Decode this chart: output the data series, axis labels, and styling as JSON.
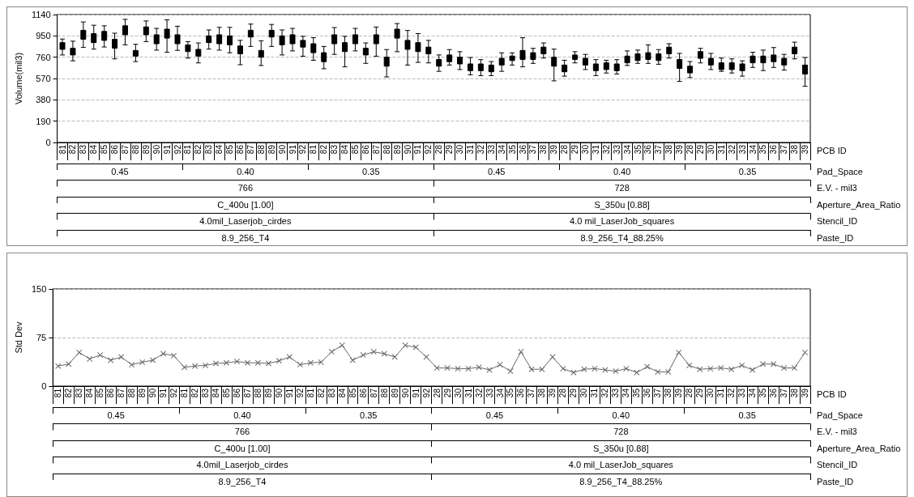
{
  "chart_data": [
    {
      "type": "box",
      "ylabel": "Volume(mil3)",
      "xlabel": "PCB ID",
      "color": "#000000",
      "ylim": [
        0,
        1140
      ],
      "yticks": [
        0,
        190,
        380,
        570,
        760,
        950,
        1140
      ],
      "grid": "y",
      "categories": [
        "81",
        "82",
        "83",
        "84",
        "85",
        "86",
        "87",
        "88",
        "89",
        "90",
        "91",
        "92",
        "81",
        "82",
        "83",
        "84",
        "85",
        "86",
        "87",
        "88",
        "89",
        "90",
        "91",
        "92",
        "81",
        "82",
        "83",
        "84",
        "85",
        "86",
        "87",
        "88",
        "89",
        "90",
        "91",
        "92",
        "28",
        "29",
        "30",
        "31",
        "32",
        "33",
        "34",
        "35",
        "36",
        "37",
        "38",
        "39",
        "28",
        "29",
        "30",
        "31",
        "32",
        "33",
        "34",
        "35",
        "36",
        "37",
        "38",
        "39",
        "28",
        "29",
        "30",
        "31",
        "32",
        "33",
        "34",
        "35",
        "36",
        "37",
        "38",
        "39"
      ],
      "annotations": [
        "0.45",
        "0.40",
        "0.35",
        "0.45",
        "0.40",
        "0.35",
        "Pad_Space",
        "766",
        "728",
        "E.V. - mil3",
        "C_400u [1.00]",
        "S_350u [0.88]",
        "Aperture_Area_Ratio",
        "4.0mil_Laserjob_cirdes",
        "4.0 mil_LaserJob_squares",
        "Stencil_ID",
        "8.9_256_T4",
        "8.9_256_T4_88.25%",
        "Paste_ID"
      ],
      "boxes": [
        {
          "low": 780,
          "q1": 830,
          "median": 860,
          "q3": 890,
          "high": 922
        },
        {
          "low": 728,
          "q1": 780,
          "median": 810,
          "q3": 840,
          "high": 903
        },
        {
          "low": 847,
          "q1": 920,
          "median": 960,
          "q3": 1000,
          "high": 1074
        },
        {
          "low": 832,
          "q1": 890,
          "median": 930,
          "q3": 970,
          "high": 1045
        },
        {
          "low": 851,
          "q1": 910,
          "median": 950,
          "q3": 990,
          "high": 1040
        },
        {
          "low": 745,
          "q1": 840,
          "median": 880,
          "q3": 920,
          "high": 974
        },
        {
          "low": 870,
          "q1": 960,
          "median": 1000,
          "q3": 1040,
          "high": 1097
        },
        {
          "low": 721,
          "q1": 770,
          "median": 790,
          "q3": 820,
          "high": 875
        },
        {
          "low": 899,
          "q1": 960,
          "median": 1000,
          "q3": 1030,
          "high": 1083
        },
        {
          "low": 823,
          "q1": 880,
          "median": 920,
          "q3": 960,
          "high": 1017
        },
        {
          "low": 804,
          "q1": 930,
          "median": 970,
          "q3": 1010,
          "high": 1093
        },
        {
          "low": 821,
          "q1": 880,
          "median": 920,
          "q3": 960,
          "high": 1036
        },
        {
          "low": 752,
          "q1": 810,
          "median": 840,
          "q3": 870,
          "high": 899
        },
        {
          "low": 709,
          "q1": 770,
          "median": 800,
          "q3": 830,
          "high": 887
        },
        {
          "low": 832,
          "q1": 890,
          "median": 920,
          "q3": 950,
          "high": 1003
        },
        {
          "low": 823,
          "q1": 880,
          "median": 920,
          "q3": 960,
          "high": 1026
        },
        {
          "low": 799,
          "q1": 870,
          "median": 910,
          "q3": 950,
          "high": 1026
        },
        {
          "low": 693,
          "q1": 790,
          "median": 830,
          "q3": 860,
          "high": 910
        },
        {
          "low": 856,
          "q1": 940,
          "median": 970,
          "q3": 1000,
          "high": 1055
        },
        {
          "low": 686,
          "q1": 760,
          "median": 790,
          "q3": 820,
          "high": 906
        },
        {
          "low": 856,
          "q1": 940,
          "median": 970,
          "q3": 1000,
          "high": 1052
        },
        {
          "low": 780,
          "q1": 870,
          "median": 910,
          "q3": 950,
          "high": 1003
        },
        {
          "low": 816,
          "q1": 880,
          "median": 920,
          "q3": 960,
          "high": 1017
        },
        {
          "low": 769,
          "q1": 850,
          "median": 880,
          "q3": 910,
          "high": 946
        },
        {
          "low": 733,
          "q1": 800,
          "median": 840,
          "q3": 880,
          "high": 934
        },
        {
          "low": 657,
          "q1": 720,
          "median": 760,
          "q3": 800,
          "high": 856
        },
        {
          "low": 785,
          "q1": 880,
          "median": 920,
          "q3": 960,
          "high": 1024
        },
        {
          "low": 674,
          "q1": 810,
          "median": 850,
          "q3": 890,
          "high": 946
        },
        {
          "low": 816,
          "q1": 880,
          "median": 920,
          "q3": 960,
          "high": 1017
        },
        {
          "low": 705,
          "q1": 780,
          "median": 810,
          "q3": 840,
          "high": 887
        },
        {
          "low": 769,
          "q1": 880,
          "median": 920,
          "q3": 960,
          "high": 1029
        },
        {
          "low": 584,
          "q1": 680,
          "median": 720,
          "q3": 760,
          "high": 828
        },
        {
          "low": 809,
          "q1": 930,
          "median": 970,
          "q3": 1010,
          "high": 1060
        },
        {
          "low": 690,
          "q1": 830,
          "median": 870,
          "q3": 910,
          "high": 998
        },
        {
          "low": 714,
          "q1": 810,
          "median": 850,
          "q3": 890,
          "high": 970
        },
        {
          "low": 709,
          "q1": 790,
          "median": 820,
          "q3": 850,
          "high": 910
        },
        {
          "low": 634,
          "q1": 680,
          "median": 710,
          "q3": 740,
          "high": 780
        },
        {
          "low": 690,
          "q1": 720,
          "median": 750,
          "q3": 780,
          "high": 828
        },
        {
          "low": 650,
          "q1": 700,
          "median": 730,
          "q3": 760,
          "high": 809
        },
        {
          "low": 603,
          "q1": 640,
          "median": 670,
          "q3": 700,
          "high": 757
        },
        {
          "low": 596,
          "q1": 640,
          "median": 670,
          "q3": 700,
          "high": 738
        },
        {
          "low": 596,
          "q1": 630,
          "median": 660,
          "q3": 690,
          "high": 721
        },
        {
          "low": 634,
          "q1": 690,
          "median": 720,
          "q3": 750,
          "high": 799
        },
        {
          "low": 690,
          "q1": 730,
          "median": 750,
          "q3": 770,
          "high": 799
        },
        {
          "low": 674,
          "q1": 740,
          "median": 780,
          "q3": 820,
          "high": 934
        },
        {
          "low": 705,
          "q1": 740,
          "median": 770,
          "q3": 800,
          "high": 839
        },
        {
          "low": 752,
          "q1": 790,
          "median": 820,
          "q3": 850,
          "high": 887
        },
        {
          "low": 549,
          "q1": 680,
          "median": 720,
          "q3": 760,
          "high": 832
        },
        {
          "low": 591,
          "q1": 630,
          "median": 660,
          "q3": 690,
          "high": 733
        },
        {
          "low": 709,
          "q1": 740,
          "median": 760,
          "q3": 780,
          "high": 809
        },
        {
          "low": 650,
          "q1": 690,
          "median": 720,
          "q3": 750,
          "high": 785
        },
        {
          "low": 596,
          "q1": 640,
          "median": 670,
          "q3": 700,
          "high": 738
        },
        {
          "low": 619,
          "q1": 650,
          "median": 680,
          "q3": 710,
          "high": 733
        },
        {
          "low": 610,
          "q1": 640,
          "median": 670,
          "q3": 700,
          "high": 738
        },
        {
          "low": 686,
          "q1": 710,
          "median": 740,
          "q3": 770,
          "high": 816
        },
        {
          "low": 705,
          "q1": 730,
          "median": 760,
          "q3": 790,
          "high": 823
        },
        {
          "low": 705,
          "q1": 740,
          "median": 770,
          "q3": 800,
          "high": 870
        },
        {
          "low": 697,
          "q1": 730,
          "median": 760,
          "q3": 790,
          "high": 828
        },
        {
          "low": 752,
          "q1": 790,
          "median": 820,
          "q3": 850,
          "high": 880
        },
        {
          "low": 544,
          "q1": 660,
          "median": 700,
          "q3": 740,
          "high": 794
        },
        {
          "low": 579,
          "q1": 620,
          "median": 650,
          "q3": 680,
          "high": 721
        },
        {
          "low": 709,
          "q1": 750,
          "median": 780,
          "q3": 810,
          "high": 839
        },
        {
          "low": 650,
          "q1": 690,
          "median": 720,
          "q3": 750,
          "high": 794
        },
        {
          "low": 634,
          "q1": 650,
          "median": 680,
          "q3": 710,
          "high": 752
        },
        {
          "low": 619,
          "q1": 650,
          "median": 680,
          "q3": 710,
          "high": 745
        },
        {
          "low": 591,
          "q1": 640,
          "median": 670,
          "q3": 700,
          "high": 728
        },
        {
          "low": 669,
          "q1": 710,
          "median": 740,
          "q3": 770,
          "high": 804
        },
        {
          "low": 641,
          "q1": 710,
          "median": 740,
          "q3": 770,
          "high": 823
        },
        {
          "low": 669,
          "q1": 720,
          "median": 750,
          "q3": 780,
          "high": 846
        },
        {
          "low": 645,
          "q1": 690,
          "median": 720,
          "q3": 750,
          "high": 785
        },
        {
          "low": 745,
          "q1": 790,
          "median": 820,
          "q3": 850,
          "high": 894
        },
        {
          "low": 501,
          "q1": 610,
          "median": 650,
          "q3": 690,
          "high": 757
        }
      ]
    },
    {
      "type": "line",
      "ylabel": "Std Dev",
      "xlabel": "PCB ID",
      "color": "#666666",
      "marker": "cross",
      "ylim": [
        0,
        150
      ],
      "yticks": [
        0,
        75,
        150
      ],
      "grid": "y",
      "categories": [
        "81",
        "82",
        "83",
        "84",
        "85",
        "86",
        "87",
        "88",
        "89",
        "90",
        "91",
        "92",
        "81",
        "82",
        "83",
        "84",
        "85",
        "86",
        "87",
        "88",
        "89",
        "90",
        "91",
        "92",
        "81",
        "82",
        "83",
        "84",
        "85",
        "86",
        "87",
        "88",
        "89",
        "90",
        "91",
        "92",
        "28",
        "29",
        "30",
        "31",
        "32",
        "33",
        "34",
        "35",
        "36",
        "37",
        "38",
        "39",
        "28",
        "29",
        "30",
        "31",
        "32",
        "33",
        "34",
        "35",
        "36",
        "37",
        "38",
        "39",
        "28",
        "29",
        "30",
        "31",
        "32",
        "33",
        "34",
        "35",
        "36",
        "37",
        "38",
        "39"
      ],
      "annotations": [
        "0.45",
        "0.40",
        "0.35",
        "0.45",
        "0.40",
        "0.35",
        "Pad_Space",
        "766",
        "728",
        "E.V. - mil3",
        "C_400u [1.00]",
        "S_350u [0.88]",
        "Aperture_Area_Ratio",
        "4.0mil_Laserjob_cirdes",
        "4.0 mil_LaserJob_squares",
        "Stencil_ID",
        "8.9_256_T4",
        "8.9_256_T4_88.25%",
        "Paste_ID"
      ],
      "values": [
        31,
        34,
        52,
        42,
        48,
        40,
        45,
        33,
        37,
        40,
        50,
        47,
        29,
        31,
        32,
        35,
        36,
        38,
        36,
        36,
        35,
        39,
        45,
        33,
        36,
        37,
        53,
        63,
        40,
        48,
        53,
        50,
        45,
        63,
        60,
        45,
        28,
        28,
        27,
        27,
        29,
        25,
        33,
        23,
        53,
        26,
        26,
        45,
        27,
        21,
        26,
        27,
        25,
        23,
        27,
        21,
        30,
        22,
        22,
        52,
        32,
        26,
        27,
        28,
        26,
        32,
        25,
        34,
        34,
        28,
        28,
        52
      ]
    }
  ]
}
